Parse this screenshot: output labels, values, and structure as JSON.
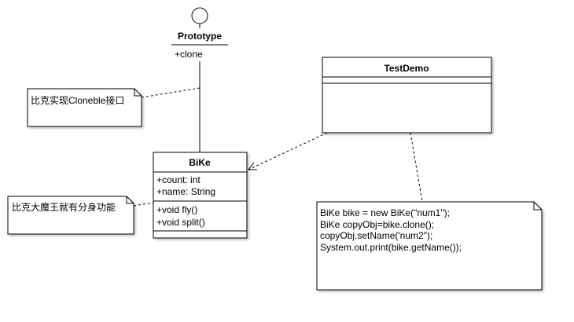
{
  "interface": {
    "name": "Prototype",
    "operations": [
      "+clone"
    ]
  },
  "class_bike": {
    "name": "BiKe",
    "attributes": [
      "+count: int",
      "+name: String"
    ],
    "operations": [
      "+void fly()",
      "+void split()"
    ]
  },
  "class_testdemo": {
    "name": "TestDemo"
  },
  "notes": {
    "cloneable": "比克实现Cloneble接口",
    "split": "比克大魔王就有分身功能",
    "code": [
      "BiKe bike = new BiKe(\"num1\");",
      "BiKe copyObj=bike.clone();",
      "copyObj.setName('num2\");",
      "System.out.print(bike.getName());"
    ]
  }
}
